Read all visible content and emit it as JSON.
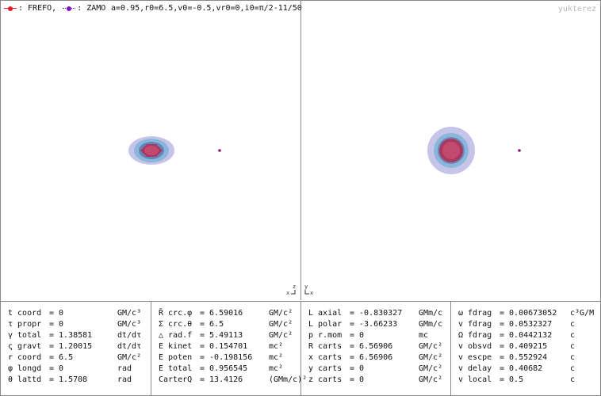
{
  "header": {
    "legend": [
      {
        "label": ": FREFO,",
        "color": "#e02020",
        "line": "solid"
      },
      {
        "label": ": ZAMO",
        "color": "#7a14c8",
        "line": "dotted"
      }
    ],
    "params": "a=0.95,r0=6.5,v0=-0.5,vr0=0,i0=π/2-11/50",
    "watermark": "yukterez"
  },
  "axes": {
    "left": {
      "top": "z",
      "bottom": "x"
    },
    "right": {
      "top": "y",
      "bottom": "x"
    }
  },
  "colors": {
    "ergosphere": "#c7c4e9",
    "outer_ring": "#8ab6da",
    "inner_ring": "#8fb8d8",
    "horizon": "#a83a60",
    "horizon_core": "#c24a70",
    "particle": "#8b1a6c"
  },
  "table": {
    "columns": [
      {
        "rows": [
          {
            "name": "t coord",
            "value": "= 0",
            "unit": "GM/c³"
          },
          {
            "name": "τ propr",
            "value": "= 0",
            "unit": "GM/c³"
          },
          {
            "name": "γ total",
            "value": "= 1.38581",
            "unit": "dt/dτ"
          },
          {
            "name": "ς gravt",
            "value": "= 1.20015",
            "unit": "dt/dτ"
          },
          {
            "name": "r coord",
            "value": "= 6.5",
            "unit": "GM/c²"
          },
          {
            "name": "φ longd",
            "value": "= 0",
            "unit": "rad"
          },
          {
            "name": "θ lattd",
            "value": "= 1.5708",
            "unit": "rad"
          }
        ]
      },
      {
        "rows": [
          {
            "name": "Ř crc.φ",
            "value": "= 6.59016",
            "unit": "GM/c²"
          },
          {
            "name": "Σ crc.θ",
            "value": "= 6.5",
            "unit": "GM/c²"
          },
          {
            "name": "△ rad.f",
            "value": "= 5.49113",
            "unit": "GM/c²"
          },
          {
            "name": "E kinet",
            "value": "= 0.154701",
            "unit": "mc²"
          },
          {
            "name": "E poten",
            "value": "= -0.198156",
            "unit": "mc²"
          },
          {
            "name": "E total",
            "value": "= 0.956545",
            "unit": "mc²"
          },
          {
            "name": "CarterQ",
            "value": "= 13.4126",
            "unit": "(GMm/c)²"
          }
        ]
      },
      {
        "rows": [
          {
            "name": "L axial",
            "value": "= -0.830327",
            "unit": "GMm/c"
          },
          {
            "name": "L polar",
            "value": "= -3.66233",
            "unit": "GMm/c"
          },
          {
            "name": "p r.mom",
            "value": "= 0",
            "unit": "mc"
          },
          {
            "name": "R carts",
            "value": "= 6.56906",
            "unit": "GM/c²"
          },
          {
            "name": "x carts",
            "value": "= 6.56906",
            "unit": "GM/c²"
          },
          {
            "name": "y carts",
            "value": "= 0",
            "unit": "GM/c²"
          },
          {
            "name": "z carts",
            "value": "= 0",
            "unit": "GM/c²"
          }
        ]
      },
      {
        "rows": [
          {
            "name": "ω fdrag",
            "value": "= 0.00673052",
            "unit": "c³G/M"
          },
          {
            "name": "v fdrag",
            "value": "= 0.0532327",
            "unit": "c"
          },
          {
            "name": "Ω fdrag",
            "value": "= 0.0442132",
            "unit": "c"
          },
          {
            "name": "v obsvd",
            "value": "= 0.409215",
            "unit": "c"
          },
          {
            "name": "v escpe",
            "value": "= 0.552924",
            "unit": "c"
          },
          {
            "name": "v delay",
            "value": "= 0.40682",
            "unit": "c"
          },
          {
            "name": "v local",
            "value": "= 0.5",
            "unit": "c"
          }
        ]
      }
    ]
  }
}
